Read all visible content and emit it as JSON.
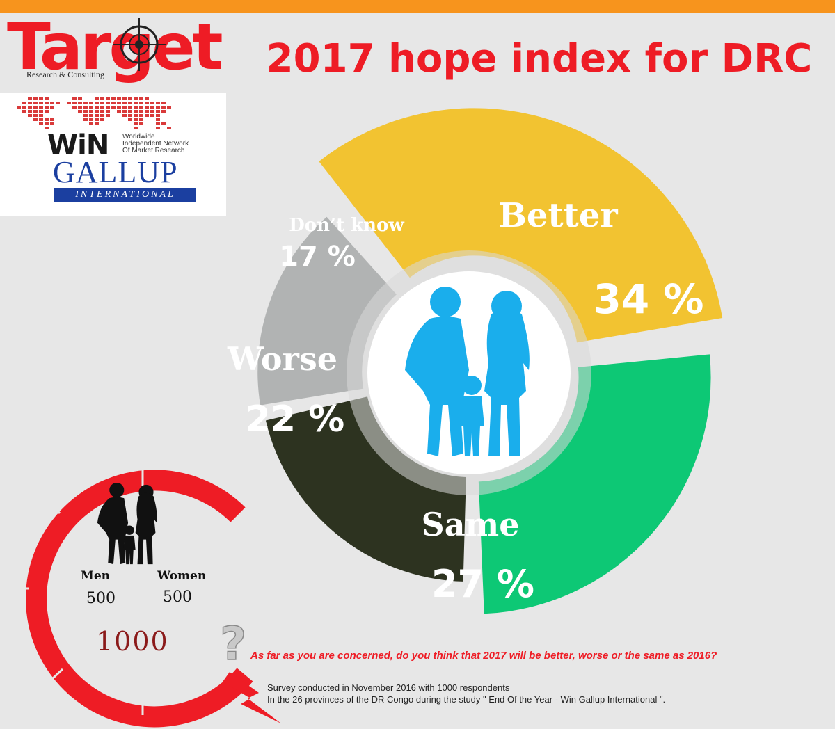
{
  "header": {
    "title": "2017 hope index for DRC",
    "logo_target": "Target",
    "logo_target_sub": "Research & Consulting",
    "logo_win": "WiN",
    "logo_win_desc": [
      "Worldwide",
      "Independent Network",
      "Of Market Research"
    ],
    "logo_gallup": "GALLUP",
    "logo_gallup_sub": "INTERNATIONAL"
  },
  "chart_data": {
    "type": "pie",
    "style": "donut",
    "slices": [
      {
        "label": "Better",
        "value": 34,
        "display": "34 %",
        "color": "#f2c331"
      },
      {
        "label": "Same",
        "value": 27,
        "display": "27 %",
        "color": "#0dc875"
      },
      {
        "label": "Worse",
        "value": 22,
        "display": "22 %",
        "color": "#2d3320"
      },
      {
        "label": "Don’t know",
        "value": 17,
        "display": "17 %",
        "color": "#b1b3b3"
      }
    ],
    "center_icon": "family-icon"
  },
  "sample": {
    "men_label": "Men",
    "women_label": "Women",
    "men_count": "500",
    "women_count": "500",
    "total": "1000",
    "icon": "family-icon"
  },
  "question": "As far as you are concerned, do you think that 2017 will be better, worse or the same as 2016?",
  "notes": [
    "Survey conducted in November 2016 with 1000 respondents",
    "In the 26 provinces of the DR Congo during the study \" End Of the Year - Win Gallup International \"."
  ],
  "colors": {
    "accent_red": "#ee1c25",
    "top_bar": "#f7941d",
    "background": "#e7e7e7"
  }
}
